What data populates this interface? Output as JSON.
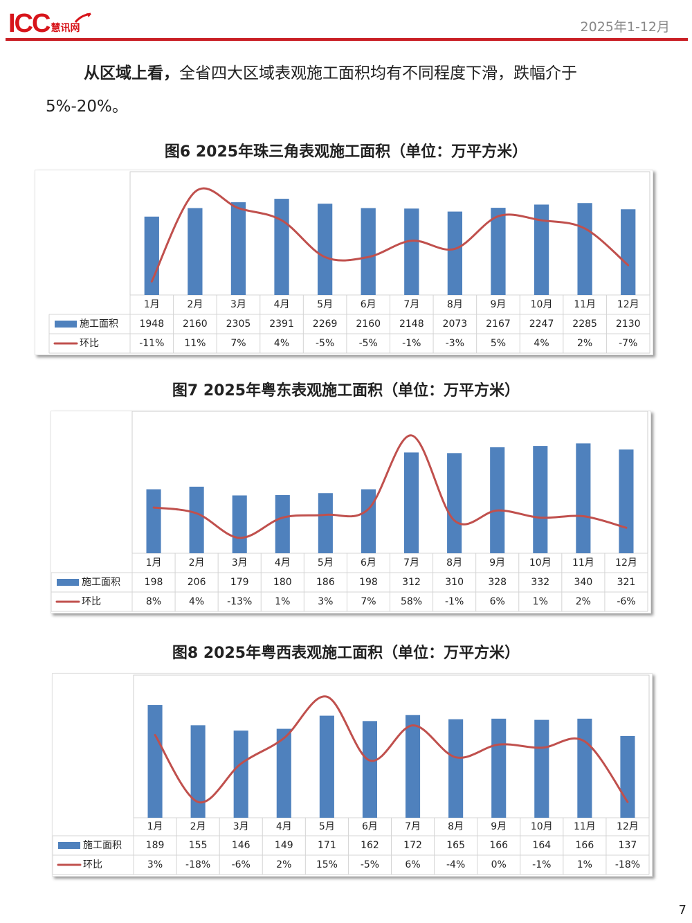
{
  "header": {
    "logo_text": "ICC",
    "logo_sub": "慧讯网",
    "period": "2025年1-12月"
  },
  "body": {
    "lead": "从区域上看，",
    "text": "全省四大区域表观施工面积均有不同程度下滑，跌幅介于5%-20%。"
  },
  "colors": {
    "bar": "#4f81bd",
    "line": "#c0504d",
    "accent": "#c91f25"
  },
  "page_number": "7",
  "chart_data": [
    {
      "type": "bar",
      "title": "图6 2025年珠三角表观施工面积（单位：万平方米）",
      "categories": [
        "1月",
        "2月",
        "3月",
        "4月",
        "5月",
        "6月",
        "7月",
        "8月",
        "9月",
        "10月",
        "11月",
        "12月"
      ],
      "series": [
        {
          "name": "施工面积",
          "type": "bar",
          "values": [
            1948,
            2160,
            2305,
            2391,
            2269,
            2160,
            2148,
            2073,
            2167,
            2247,
            2285,
            2130
          ],
          "labels": [
            "1948",
            "2160",
            "2305",
            "2391",
            "2269",
            "2160",
            "2148",
            "2073",
            "2167",
            "2247",
            "2285",
            "2130"
          ]
        },
        {
          "name": "环比",
          "type": "line",
          "values": [
            -11,
            11,
            7,
            4,
            -5,
            -5,
            -1,
            -3,
            5,
            4,
            2,
            -7
          ],
          "labels": [
            "-11%",
            "11%",
            "7%",
            "4%",
            "-5%",
            "-5%",
            "-1%",
            "-3%",
            "5%",
            "4%",
            "2%",
            "-7%"
          ]
        }
      ],
      "data_table": true,
      "grid": false,
      "legend": "data-table"
    },
    {
      "type": "bar",
      "title": "图7 2025年粤东表观施工面积（单位：万平方米）",
      "categories": [
        "1月",
        "2月",
        "3月",
        "4月",
        "5月",
        "6月",
        "7月",
        "8月",
        "9月",
        "10月",
        "11月",
        "12月"
      ],
      "series": [
        {
          "name": "施工面积",
          "type": "bar",
          "values": [
            198,
            206,
            179,
            180,
            186,
            198,
            312,
            310,
            328,
            332,
            340,
            321
          ],
          "labels": [
            "198",
            "206",
            "179",
            "180",
            "186",
            "198",
            "312",
            "310",
            "328",
            "332",
            "340",
            "321"
          ]
        },
        {
          "name": "环比",
          "type": "line",
          "values": [
            8,
            4,
            -13,
            1,
            3,
            7,
            58,
            -1,
            6,
            1,
            2,
            -6
          ],
          "labels": [
            "8%",
            "4%",
            "-13%",
            "1%",
            "3%",
            "7%",
            "58%",
            "-1%",
            "6%",
            "1%",
            "2%",
            "-6%"
          ]
        }
      ],
      "data_table": true,
      "grid": false,
      "legend": "data-table"
    },
    {
      "type": "bar",
      "title": "图8 2025年粤西表观施工面积（单位：万平方米）",
      "categories": [
        "1月",
        "2月",
        "3月",
        "4月",
        "5月",
        "6月",
        "7月",
        "8月",
        "9月",
        "10月",
        "11月",
        "12月"
      ],
      "series": [
        {
          "name": "施工面积",
          "type": "bar",
          "values": [
            189,
            155,
            146,
            149,
            171,
            162,
            172,
            165,
            166,
            164,
            166,
            137
          ],
          "labels": [
            "189",
            "155",
            "146",
            "149",
            "171",
            "162",
            "172",
            "165",
            "166",
            "164",
            "166",
            "137"
          ]
        },
        {
          "name": "环比",
          "type": "line",
          "values": [
            3,
            -18,
            -6,
            2,
            15,
            -5,
            6,
            -4,
            0,
            -1,
            1,
            -18
          ],
          "labels": [
            "3%",
            "-18%",
            "-6%",
            "2%",
            "15%",
            "-5%",
            "6%",
            "-4%",
            "0%",
            "-1%",
            "1%",
            "-18%"
          ]
        }
      ],
      "data_table": true,
      "grid": false,
      "legend": "data-table"
    }
  ]
}
